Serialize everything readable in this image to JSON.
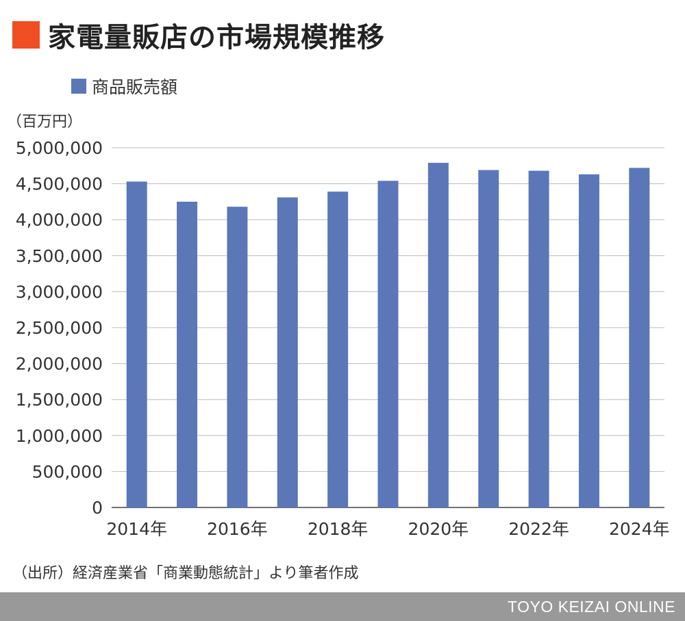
{
  "header": {
    "title": "家電量販店の市場規模推移"
  },
  "legend": {
    "label": "商品販売額"
  },
  "unit_label": "（百万円）",
  "source_note": "（出所）経済産業省「商業動態統計」より筆者作成",
  "footer": {
    "brand": "TOYO KEIZAI ONLINE"
  },
  "colors": {
    "bar": "#5b77b8",
    "title_mark": "#f04e23",
    "footer_bg": "#999999"
  },
  "chart_data": {
    "type": "bar",
    "categories": [
      "2014年",
      "2015年",
      "2016年",
      "2017年",
      "2018年",
      "2019年",
      "2020年",
      "2021年",
      "2022年",
      "2023年",
      "2024年"
    ],
    "x_tick_labels": [
      "2014年",
      "",
      "2016年",
      "",
      "2018年",
      "",
      "2020年",
      "",
      "2022年",
      "",
      "2024年"
    ],
    "series": [
      {
        "name": "商品販売額",
        "values": [
          4530000,
          4250000,
          4180000,
          4310000,
          4390000,
          4540000,
          4790000,
          4690000,
          4680000,
          4630000,
          4720000
        ]
      }
    ],
    "ylim": [
      0,
      5000000
    ],
    "y_ticks": [
      0,
      500000,
      1000000,
      1500000,
      2000000,
      2500000,
      3000000,
      3500000,
      4000000,
      4500000,
      5000000
    ],
    "y_tick_labels": [
      "0",
      "500,000",
      "1,000,000",
      "1,500,000",
      "2,000,000",
      "2,500,000",
      "3,000,000",
      "3,500,000",
      "4,000,000",
      "4,500,000",
      "5,000,000"
    ],
    "grid": true,
    "legend_position": "top-left"
  }
}
